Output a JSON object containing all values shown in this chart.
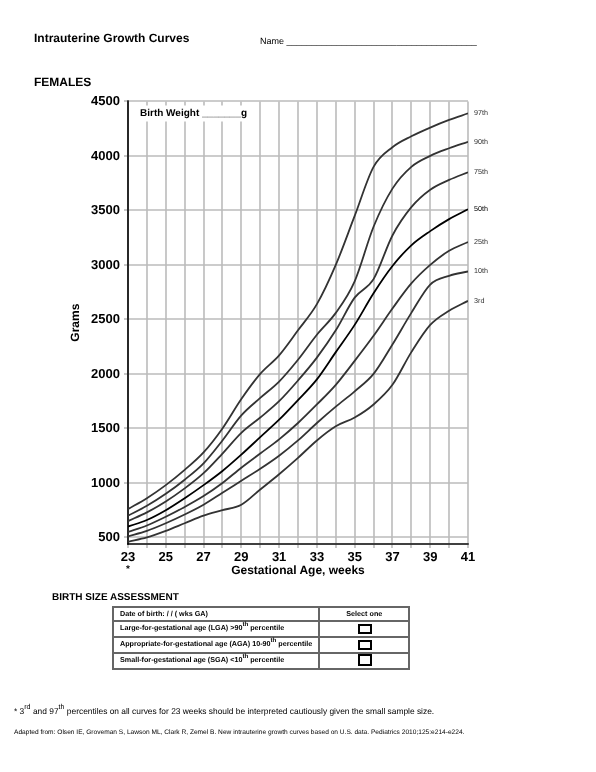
{
  "chart_data": {
    "type": "line",
    "title": "Intrauterine Growth Curves",
    "subtitle": "FEMALES",
    "xlabel": "Gestational Age, weeks",
    "ylabel": "Grams",
    "x": [
      23,
      24,
      25,
      26,
      27,
      28,
      29,
      30,
      31,
      32,
      33,
      34,
      35,
      36,
      37,
      38,
      39,
      40,
      41
    ],
    "series": [
      {
        "name": "97th",
        "color": "#333333",
        "values": [
          760,
          860,
          980,
          1120,
          1280,
          1500,
          1770,
          2000,
          2170,
          2400,
          2640,
          3000,
          3450,
          3900,
          4080,
          4180,
          4260,
          4330,
          4390
        ]
      },
      {
        "name": "90th",
        "color": "#333333",
        "values": [
          700,
          790,
          900,
          1030,
          1180,
          1390,
          1620,
          1780,
          1930,
          2130,
          2360,
          2560,
          2850,
          3350,
          3700,
          3900,
          4000,
          4070,
          4130
        ]
      },
      {
        "name": "75th",
        "color": "#333333",
        "values": [
          650,
          730,
          830,
          950,
          1090,
          1270,
          1460,
          1600,
          1750,
          1940,
          2150,
          2400,
          2700,
          2870,
          3270,
          3530,
          3690,
          3780,
          3850
        ]
      },
      {
        "name": "50th",
        "color": "#000000",
        "values": [
          600,
          660,
          750,
          860,
          980,
          1110,
          1260,
          1420,
          1580,
          1760,
          1950,
          2200,
          2450,
          2740,
          2990,
          3180,
          3310,
          3420,
          3510
        ]
      },
      {
        "name": "25th",
        "color": "#333333",
        "values": [
          550,
          610,
          690,
          780,
          880,
          1000,
          1140,
          1270,
          1400,
          1550,
          1720,
          1900,
          2120,
          2350,
          2600,
          2830,
          3000,
          3130,
          3210
        ]
      },
      {
        "name": "10th",
        "color": "#333333",
        "values": [
          510,
          560,
          630,
          710,
          800,
          910,
          1020,
          1130,
          1250,
          1390,
          1550,
          1700,
          1840,
          2000,
          2270,
          2560,
          2820,
          2900,
          2940
        ]
      },
      {
        "name": "3rd",
        "color": "#333333",
        "values": [
          460,
          500,
          560,
          630,
          700,
          750,
          800,
          940,
          1080,
          1230,
          1390,
          1520,
          1600,
          1720,
          1900,
          2200,
          2450,
          2580,
          2670
        ]
      }
    ],
    "xlim": [
      23,
      41
    ],
    "xticks": [
      23,
      {
        "value": 24,
        "label": null
      },
      25,
      {
        "value": 26,
        "label": null
      },
      27,
      {
        "value": 28,
        "label": null
      },
      29,
      {
        "value": 30,
        "label": null
      },
      31,
      {
        "value": 32,
        "label": null
      },
      33,
      {
        "value": 34,
        "label": null
      },
      35,
      {
        "value": 36,
        "label": null
      },
      37,
      {
        "value": 38,
        "label": null
      },
      39,
      {
        "value": 40,
        "label": null
      },
      41
    ],
    "ylim": [
      440,
      4500
    ],
    "yticks": [
      500,
      1000,
      1500,
      2000,
      2500,
      3000,
      3500,
      4000,
      4500
    ],
    "grid": true,
    "legend": false,
    "marker": "none",
    "line_style": "solid",
    "annotations": [
      "Name ______________________________________",
      "Birth Weight _______g",
      "*",
      "BIRTH SIZE ASSESSMENT",
      "Date of birth:          /          /               (              wks GA)",
      "Select one",
      "Large-for-gestational age (LGA)  >90$^{th}$ percentile",
      "Appropriate-for-gestational age (AGA)  10-90$^{th}$ percentile",
      "Small-for-gestational age (SGA)  <10$^{th}$ percentile",
      "* 3$^{rd}$ and 97$^{th}$ percentiles on all curves for 23 weeks should be interpreted cautiously given the small sample size.",
      "Adapted from:  Olsen IE, Groveman S, Lawson ML, Clark R, Zemel B. New intrauterine growth curves based on U.S. data. Pediatrics 2010;125:e214-e224."
    ]
  }
}
